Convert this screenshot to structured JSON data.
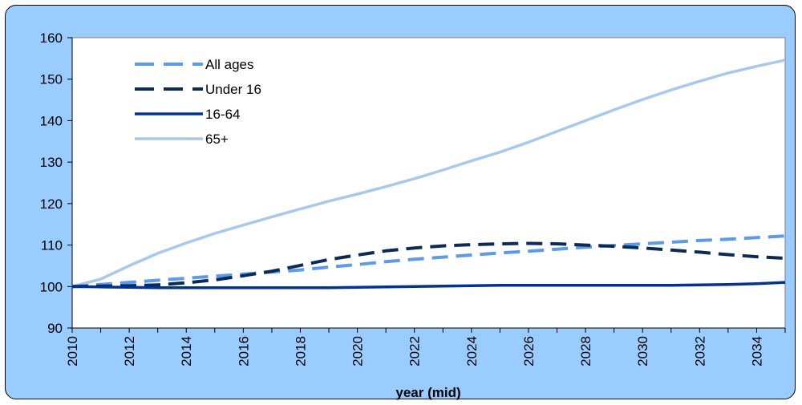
{
  "chart_data": {
    "type": "line",
    "title": "",
    "xlabel": "year (mid)",
    "ylabel": "",
    "x": [
      2010,
      2011,
      2012,
      2013,
      2014,
      2015,
      2016,
      2017,
      2018,
      2019,
      2020,
      2021,
      2022,
      2023,
      2024,
      2025,
      2026,
      2027,
      2028,
      2029,
      2030,
      2031,
      2032,
      2033,
      2034,
      2035
    ],
    "xticks": [
      2010,
      2012,
      2014,
      2016,
      2018,
      2020,
      2022,
      2024,
      2026,
      2028,
      2030,
      2032,
      2034
    ],
    "xlim": [
      2010,
      2035
    ],
    "ylim": [
      90,
      160
    ],
    "yticks": [
      90,
      100,
      110,
      120,
      130,
      140,
      150,
      160
    ],
    "grid": false,
    "legend_position": "top-left",
    "series": [
      {
        "name": "All ages",
        "color": "#5b9bef",
        "style": "dashed",
        "values": [
          100,
          100.5,
          101,
          101.5,
          102,
          102.5,
          103,
          103.5,
          104,
          104.7,
          105.3,
          106,
          106.6,
          107.1,
          107.6,
          108.1,
          108.5,
          109,
          109.5,
          109.9,
          110.3,
          110.7,
          111.1,
          111.4,
          111.8,
          112.2
        ]
      },
      {
        "name": "Under 16",
        "color": "#0a2a5a",
        "style": "dashed",
        "values": [
          100,
          100.1,
          100.2,
          100.4,
          100.9,
          101.6,
          102.6,
          103.7,
          105.1,
          106.5,
          107.6,
          108.6,
          109.3,
          109.8,
          110.1,
          110.3,
          110.4,
          110.3,
          110,
          109.7,
          109.3,
          108.8,
          108.3,
          107.7,
          107.2,
          106.8
        ]
      },
      {
        "name": "16-64",
        "color": "#003399",
        "style": "solid",
        "values": [
          100,
          99.9,
          99.8,
          99.7,
          99.7,
          99.7,
          99.7,
          99.7,
          99.7,
          99.7,
          99.8,
          99.9,
          100,
          100.1,
          100.2,
          100.3,
          100.3,
          100.3,
          100.3,
          100.3,
          100.3,
          100.3,
          100.4,
          100.5,
          100.7,
          101
        ]
      },
      {
        "name": "65+",
        "color": "#a8c8ec",
        "style": "solid",
        "values": [
          100,
          101.8,
          105,
          108,
          110.5,
          112.8,
          114.8,
          116.8,
          118.7,
          120.6,
          122.3,
          124.1,
          126,
          128.1,
          130.3,
          132.4,
          134.8,
          137.4,
          140,
          142.6,
          145.1,
          147.4,
          149.5,
          151.5,
          153.1,
          154.6
        ]
      }
    ]
  }
}
